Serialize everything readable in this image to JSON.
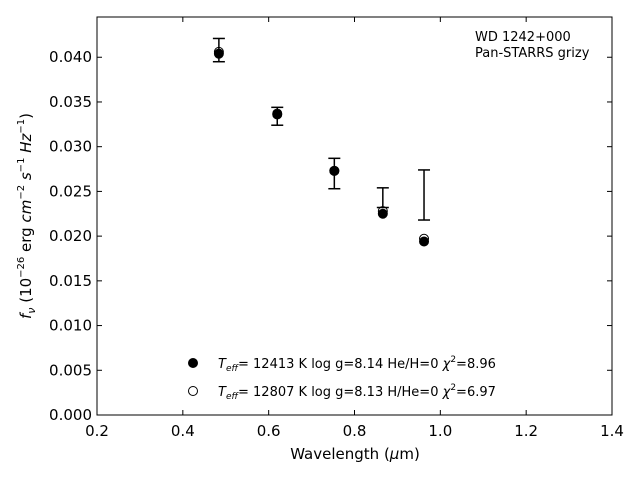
{
  "chart_data": {
    "type": "scatter",
    "xlabel": "Wavelength (μm)",
    "ylabel": "f_ν (10^−26 erg cm^−2 s^−1 Hz^−1)",
    "xlim": [
      0.2,
      1.4
    ],
    "ylim": [
      0.0,
      0.0445
    ],
    "x_ticks": [
      0.2,
      0.4,
      0.6,
      0.8,
      1.0,
      1.2,
      1.4
    ],
    "x_tick_labels": [
      "0.2",
      "0.4",
      "0.6",
      "0.8",
      "1.0",
      "1.2",
      "1.4"
    ],
    "y_ticks": [
      0.0,
      0.005,
      0.01,
      0.015,
      0.02,
      0.025,
      0.03,
      0.035,
      0.04
    ],
    "y_tick_labels": [
      "0.000",
      "0.005",
      "0.010",
      "0.015",
      "0.020",
      "0.025",
      "0.030",
      "0.035",
      "0.040"
    ],
    "grid": false,
    "annotation": [
      "WD 1242+000",
      "Pan-STARRS grizy"
    ],
    "annotation_placement": "top-right",
    "legend_placement": "bottom-center",
    "observed": [
      {
        "x": 0.484,
        "y": 0.0408,
        "yerr": 0.0013
      },
      {
        "x": 0.62,
        "y": 0.0334,
        "yerr": 0.001
      },
      {
        "x": 0.753,
        "y": 0.027,
        "yerr": 0.0017
      },
      {
        "x": 0.866,
        "y": 0.0243,
        "yerr": 0.0011
      },
      {
        "x": 0.962,
        "y": 0.0246,
        "yerr": 0.0028
      }
    ],
    "series": [
      {
        "name": "He/H=0",
        "marker": "filled-circle",
        "legend_parts": {
          "teff_value": "= 12413 K",
          "logg": "log g=8.14",
          "comp": "He/H=0",
          "chi_value": "=8.96"
        },
        "points": [
          {
            "x": 0.484,
            "y": 0.0404
          },
          {
            "x": 0.62,
            "y": 0.0336
          },
          {
            "x": 0.753,
            "y": 0.0273
          },
          {
            "x": 0.866,
            "y": 0.0225
          },
          {
            "x": 0.962,
            "y": 0.0194
          }
        ]
      },
      {
        "name": "H/He=0",
        "marker": "open-circle",
        "legend_parts": {
          "teff_value": "= 12807 K",
          "logg": "log g=8.13",
          "comp": "H/He=0",
          "chi_value": "=6.97"
        },
        "points": [
          {
            "x": 0.484,
            "y": 0.0406
          },
          {
            "x": 0.62,
            "y": 0.0337
          },
          {
            "x": 0.753,
            "y": 0.0273
          },
          {
            "x": 0.866,
            "y": 0.0228
          },
          {
            "x": 0.962,
            "y": 0.0197
          }
        ]
      }
    ]
  }
}
